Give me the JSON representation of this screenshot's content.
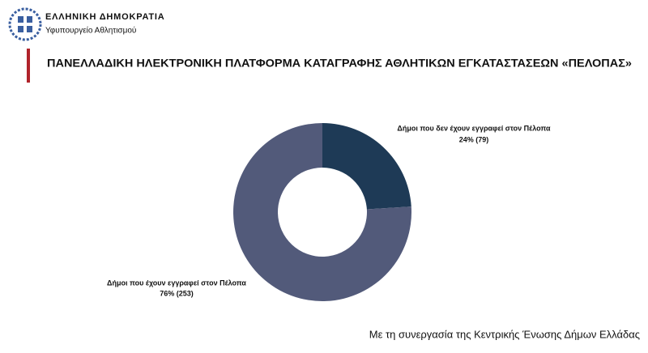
{
  "header": {
    "country": "ΕΛΛΗΝΙΚΗ ΔΗΜΟΚΡΑΤΙΑ",
    "ministry": "Υφυπουργείο Αθλητισμού"
  },
  "chart_data": {
    "type": "pie",
    "title": "ΠΑΝΕΛΛΑΔΙΚΗ ΗΛΕΚΤΡΟΝΙΚΗ ΠΛΑΤΦΟΡΜΑ ΚΑΤΑΓΡΑΦΗΣ ΑΘΛΗΤΙΚΩΝ ΕΓΚΑΤΑΣΤΑΣΕΩΝ «ΠΕΛΟΠΑΣ»",
    "categories": [
      "Δήμοι που δεν έχουν εγγραφεί στον Πέλοπα",
      "Δήμοι που έχουν εγγραφεί στον Πέλοπα"
    ],
    "values": [
      24,
      76
    ],
    "value_labels": [
      "24% (79)",
      "76% (253)"
    ],
    "colors": [
      "#1e3a56",
      "#525a7a"
    ],
    "donut": true
  },
  "footer": "Με τη συνεργασία της Κεντρικής Ένωσης Δήμων Ελλάδας"
}
